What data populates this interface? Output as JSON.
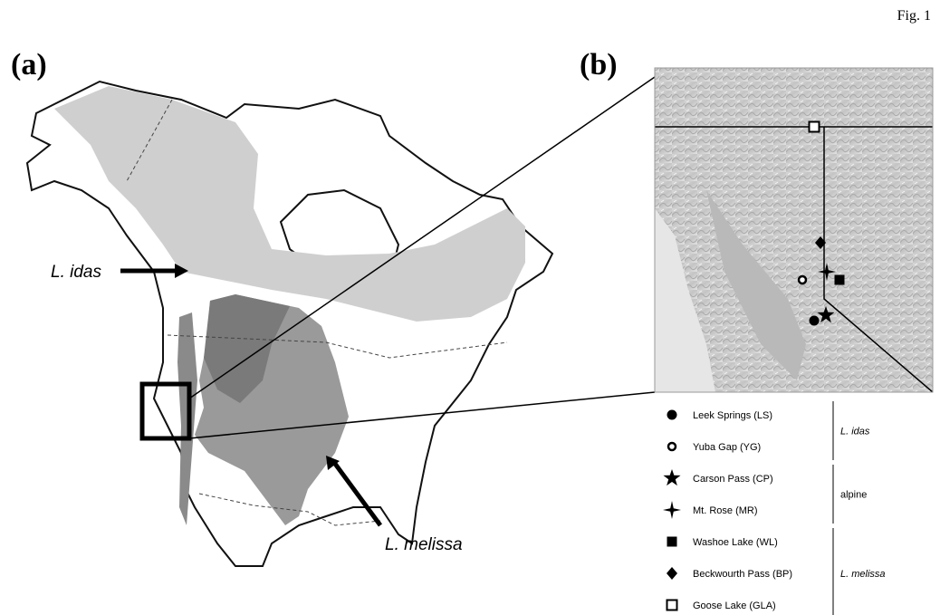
{
  "figure_label": "Fig. 1",
  "panel_a": {
    "label": "(a)",
    "annotations": [
      "L. idas",
      "L. melissa"
    ]
  },
  "panel_b": {
    "label": "(b)"
  },
  "legend": {
    "groups": [
      {
        "name": "L. idas",
        "sites": [
          "Leek Springs (LS)",
          "Yuba Gap (YG)"
        ]
      },
      {
        "name": "alpine",
        "sites": [
          "Carson Pass (CP)",
          "Mt. Rose (MR)"
        ]
      },
      {
        "name": "L. melissa",
        "sites": [
          "Washoe Lake (WL)",
          "Beckwourth Pass (BP)",
          "Goose Lake (GLA)"
        ]
      }
    ]
  }
}
